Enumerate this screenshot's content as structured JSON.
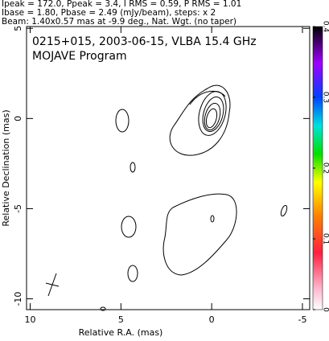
{
  "chart_data": {
    "type": "contour",
    "header": [
      "Ipeak = 172.0, Ppeak = 3.4, I RMS = 0.59, P RMS = 1.01",
      "Ibase = 1.80, Pbase = 2.49 (mJy/beam), steps: x 2",
      "Beam: 1.40x0.57 mas at -9.9 deg., Nat. Wgt. (no taper)"
    ],
    "title": "0215+015, 2003-06-15, VLBA 15.4 GHz",
    "subtitle": "MOJAVE Program",
    "x_label": "Relative R.A. (mas)",
    "y_label": "Relative Declination (mas)",
    "xlim": [
      10.2,
      -5.4
    ],
    "xticks": [
      10,
      5,
      0,
      -5
    ],
    "ylim": [
      -10.6,
      5.1
    ],
    "yticks": [
      5,
      0,
      -5,
      -10
    ],
    "colorbar": {
      "lim": [
        0,
        0.4
      ],
      "ticks": [
        0,
        0.1,
        0.2,
        0.3,
        0.4
      ]
    }
  }
}
